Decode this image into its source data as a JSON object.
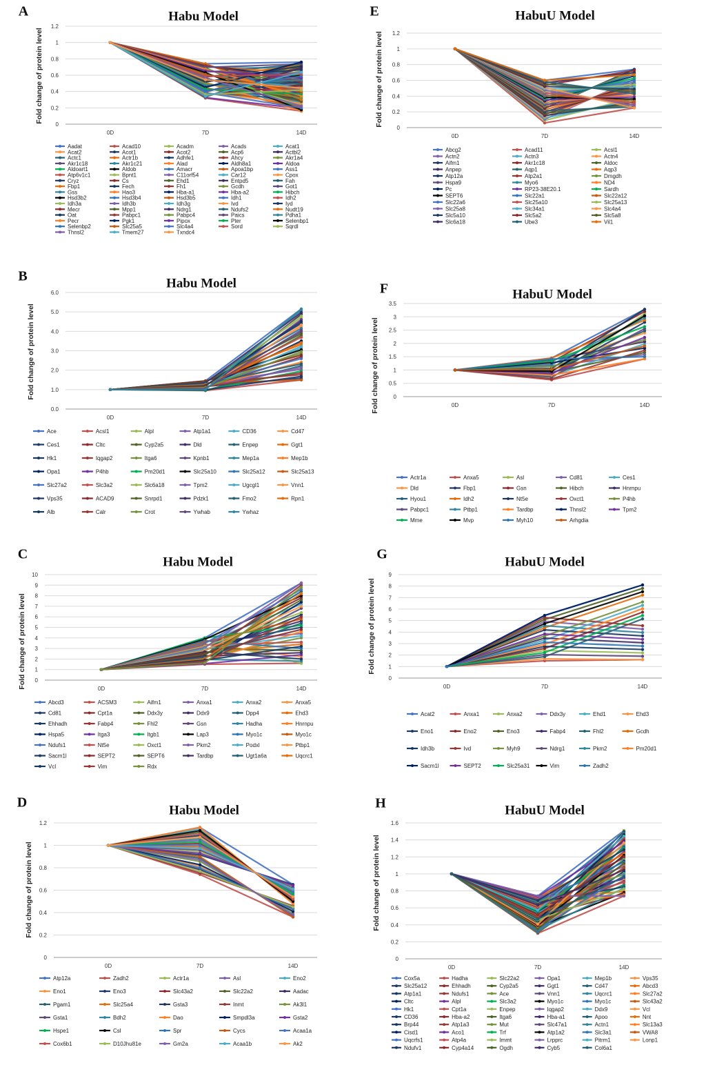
{
  "figure": {
    "description_panels": 8
  },
  "chart_data": [
    {
      "panel": "A",
      "title": "Habu Model",
      "type": "line",
      "ylabel": "Fold change of protein level",
      "categories": [
        "0D",
        "7D",
        "14D"
      ],
      "ylim": [
        0,
        1.2
      ],
      "yticks": [
        "0",
        "0.2",
        "0.4",
        "0.6",
        "0.8",
        "1",
        "1.2"
      ],
      "legend_cols": 5,
      "legend": [
        "Aadat",
        "Acad10",
        "Acadm",
        "Acads",
        "Acat1",
        "Acat2",
        "Acot1",
        "Acot2",
        "Acp6",
        "Actbl2",
        "Actc1",
        "Actr1b",
        "Adhfe1",
        "Ahcy",
        "Akr1a4",
        "Akr1c18",
        "Akr1c21",
        "Alad",
        "Aldh8a1",
        "Aldoa",
        "Aldoart1",
        "Aldob",
        "Amacr",
        "Apoa1bp",
        "Ass1",
        "Atp6v1c1",
        "Bpnt1",
        "C11orf54",
        "Car12",
        "Cpox",
        "Cryz",
        "Cs",
        "Ehd1",
        "Entpd5",
        "Fah",
        "Fbp1",
        "Fech",
        "Fh1",
        "Gcdh",
        "Got1",
        "Gss",
        "Hao3",
        "Hba-a1",
        "Hba-a2",
        "Hibch",
        "Hsd3b2",
        "Hsd3b4",
        "Hsd3b5",
        "Idh1",
        "Idh2",
        "Idh3a",
        "Idh3b",
        "Idh3g",
        "Ivd",
        "Iyd",
        "Mecr",
        "Mpp1",
        "Ndrg1",
        "Ndufs2",
        "Nudt19",
        "Oat",
        "Pabpc1",
        "Pabpc4",
        "Paics",
        "Pdha1",
        "Pecr",
        "Pgk1",
        "Pipox",
        "Pter",
        "Selenbp1",
        "Selenbp2",
        "Slc25a5",
        "Slc4a4",
        "Sord",
        "Sqrdl",
        "Thnsl2",
        "Tmem27",
        "Txndc4"
      ],
      "series_range": {
        "d7": [
          0.32,
          0.74
        ],
        "d14": [
          0.16,
          0.76
        ]
      }
    },
    {
      "panel": "B",
      "title": "Habu Model",
      "type": "line",
      "ylabel": "Fold change of protein level",
      "categories": [
        "0D",
        "7D",
        "14D"
      ],
      "ylim": [
        0,
        6
      ],
      "yticks": [
        "0.0",
        "1.0",
        "2.0",
        "3.0",
        "4.0",
        "5.0",
        "6.0"
      ],
      "legend_cols": 6,
      "legend": [
        "Ace",
        "Acsl1",
        "Alpl",
        "Atp1a1",
        "CD36",
        "Cd47",
        "Ces1",
        "Cltc",
        "Cyp2a5",
        "Dld",
        "Enpep",
        "Ggt1",
        "Hk1",
        "Iqgap2",
        "Itga6",
        "Kpnb1",
        "Mep1a",
        "Mep1b",
        "Opa1",
        "P4hb",
        "Pm20d1",
        "Slc25a10",
        "Slc25a12",
        "Slc25a13",
        "Slc27a2",
        "Slc3a2",
        "Slc6a18",
        "Tpm2",
        "Ugcgl1",
        "Vnn1",
        "Vps35",
        "ACAD9",
        "Snrpd1",
        "Pdzk1",
        "Fmo2",
        "Rpn1",
        "Alb",
        "Calr",
        "Crot",
        "Ywhab",
        "Ywhaz"
      ],
      "series_range": {
        "d7": [
          0.95,
          1.45
        ],
        "d14": [
          1.5,
          5.15
        ]
      }
    },
    {
      "panel": "C",
      "title": "Habu Model",
      "type": "line",
      "ylabel": "Fold change of protein level",
      "categories": [
        "0D",
        "7D",
        "14D"
      ],
      "ylim": [
        0,
        10
      ],
      "yticks": [
        "0",
        "1",
        "2",
        "3",
        "4",
        "5",
        "6",
        "7",
        "8",
        "9",
        "10"
      ],
      "legend_cols": 6,
      "legend": [
        "Abcd3",
        "ACSM3",
        "Aifm1",
        "Anxa1",
        "Anxa2",
        "Anxa5",
        "Cd81",
        "Cpt1a",
        "Ddx3y",
        "Ddx9",
        "Dpp4",
        "Ehd3",
        "Ehhadh",
        "Fabp4",
        "Fhl2",
        "Gsn",
        "Hadha",
        "Hnrnpu",
        "Hspa5",
        "Itga3",
        "Itgb1",
        "Lap3",
        "Myo1c",
        "Myo1c",
        "Ndufs1",
        "Nt5e",
        "Oxct1",
        "Pkm2",
        "Podxl",
        "Ptbp1",
        "Sacm1l",
        "SEPT2",
        "SEPT6",
        "Tardbp",
        "Ugt1a6a",
        "Uqcrc1",
        "Vcl",
        "Vim",
        "Rdx"
      ],
      "series_range": {
        "d7": [
          1.5,
          4.0
        ],
        "d14": [
          1.6,
          9.2
        ]
      }
    },
    {
      "panel": "D",
      "title": "Habu Model",
      "type": "line",
      "ylabel": "Fold change of protein level",
      "categories": [
        "0D",
        "7D",
        "14D"
      ],
      "ylim": [
        0,
        1.2
      ],
      "yticks": [
        "0",
        "0.2",
        "0.4",
        "0.6",
        "0.8",
        "1",
        "1.2"
      ],
      "legend_cols": 5,
      "legend": [
        "Atp12a",
        "Zadh2",
        "Actr1a",
        "Asl",
        "Eno2",
        "Eno1",
        "Eno3",
        "Slc43a2",
        "Slc22a2",
        "Aadac",
        "Pgam1",
        "Slc25a4",
        "Gsta3",
        "Inmt",
        "Ak3l1",
        "Gsta1",
        "Bdh2",
        "Dao",
        "Smpdl3a",
        "Gsta2",
        "Hspe1",
        "Csl",
        "Spr",
        "Cycs",
        "Acaa1a",
        "Cox6b1",
        "D10Jhu81e",
        "Gm2a",
        "Acaa1b",
        "Ak2"
      ],
      "series_range": {
        "d7": [
          0.74,
          1.16
        ],
        "d14": [
          0.36,
          0.65
        ]
      }
    },
    {
      "panel": "E",
      "title": "HabuU Model",
      "type": "line",
      "ylabel": "Fold change of protein level",
      "categories": [
        "0D",
        "7D",
        "14D"
      ],
      "ylim": [
        0,
        1.2
      ],
      "yticks": [
        "0",
        "0.2",
        "0.4",
        "0.6",
        "0.8",
        "1",
        "1.2"
      ],
      "legend_cols": 3,
      "legend": [
        "Abcg2",
        "Acad11",
        "Acsl1",
        "Actn2",
        "Actn3",
        "Actn4",
        "Aifm1",
        "Akr1c18",
        "Aldoc",
        "Anpep",
        "Aqp1",
        "Aqp3",
        "Atp12a",
        "Atp2a1",
        "Dmgdh",
        "Hspa9",
        "Myo6",
        "ND4",
        "Pc",
        "RP23-38E20.1",
        "Sardh",
        "SEPT6",
        "Slc22a1",
        "Slc22a12",
        "Slc22a6",
        "Slc25a10",
        "Slc25a13",
        "Slc25a8",
        "Slc34a1",
        "Slc4a4",
        "Slc5a10",
        "Slc5a2",
        "Slc5a8",
        "Slc6a18",
        "Ube3",
        "Vil1"
      ],
      "series_range": {
        "d7": [
          0.06,
          0.6
        ],
        "d14": [
          0.25,
          0.74
        ]
      }
    },
    {
      "panel": "F",
      "title": "HabuU Model",
      "type": "line",
      "ylabel": "Fold change of protein level",
      "categories": [
        "0D",
        "7D",
        "14D"
      ],
      "ylim": [
        0,
        3.5
      ],
      "yticks": [
        "0",
        "0.5",
        "1",
        "1.5",
        "2",
        "2.5",
        "3",
        "3.5"
      ],
      "legend_cols": 5,
      "legend": [
        "Actr1a",
        "Anxa5",
        "Asl",
        "Cd81",
        "Ces1",
        "Dld",
        "Fbp1",
        "Gsn",
        "Hibch",
        "Hnrnpu",
        "Hyou1",
        "Idh2",
        "Nt5e",
        "Oxct1",
        "P4hb",
        "Pabpc1",
        "Ptbp1",
        "Tardbp",
        "Thnsl2",
        "Tpm2",
        "Mme",
        "Mvp",
        "Myh10",
        "Arhgdia"
      ],
      "series_range": {
        "d7": [
          0.63,
          1.45
        ],
        "d14": [
          1.42,
          3.28
        ]
      }
    },
    {
      "panel": "G",
      "title": "HabuU Model",
      "type": "line",
      "ylabel": "Fold change of protein level",
      "categories": [
        "0D",
        "7D",
        "14D"
      ],
      "ylim": [
        0,
        9
      ],
      "yticks": [
        "0",
        "1",
        "2",
        "3",
        "4",
        "5",
        "6",
        "7",
        "8",
        "9"
      ],
      "legend_cols": 6,
      "legend": [
        "Acat2",
        "Anxa1",
        "Anxa2",
        "Ddx3y",
        "Ehd1",
        "Ehd3",
        "Eno1",
        "Eno2",
        "Eno3",
        "Fabp4",
        "Fhl2",
        "Gcdh",
        "Idh3b",
        "Ivd",
        "Myh9",
        "Ndrg1",
        "Pkm2",
        "Pm20d1",
        "Sacm1l",
        "SEPT2",
        "Slc25a31",
        "Vim",
        "Zadh2"
      ],
      "series_range": {
        "d7": [
          1.5,
          5.45
        ],
        "d14": [
          1.6,
          8.1
        ]
      }
    },
    {
      "panel": "H",
      "title": "HabuU Model",
      "type": "line",
      "ylabel": "Fold change of protein level",
      "categories": [
        "0D",
        "7D",
        "14D"
      ],
      "ylim": [
        0,
        1.6
      ],
      "yticks": [
        "0",
        "0.2",
        "0.4",
        "0.6",
        "0.8",
        "1",
        "1.2",
        "1.4",
        "1.6"
      ],
      "legend_cols": 6,
      "legend": [
        "Cox5a",
        "Hadha",
        "Slc22a2",
        "Opa1",
        "Mep1b",
        "Vps35",
        "Slc25a12",
        "Ehhadh",
        "Cyp2a5",
        "Ggt1",
        "Cd47",
        "Abcd3",
        "Atp1a1",
        "Ndufs1",
        "Ace",
        "Vnn1",
        "Uqcrc1",
        "Slc27a2",
        "Cltc",
        "Alpl",
        "Slc3a2",
        "Myo1c",
        "Myo1c",
        "Slc43a2",
        "Hk1",
        "Cpt1a",
        "Enpep",
        "Iqgap2",
        "Ddx9",
        "Vcl",
        "CD36",
        "Hba-a2",
        "Itga6",
        "Hba-a1",
        "Apoo",
        "Nnt",
        "Brp44",
        "Atp1a3",
        "Mut",
        "Slc47a1",
        "Actn1",
        "Slc13a3",
        "Cisd1",
        "Aco1",
        "Trf",
        "Atp1a2",
        "Slc3a1",
        "VWA8",
        "Uqcrfs1",
        "Atp4a",
        "Immt",
        "Lrpprc",
        "Pitrm1",
        "Lonp1",
        "Ndufv1",
        "Cyp4a14",
        "Ogdh",
        "Cyb5",
        "Col6a1"
      ],
      "series_range": {
        "d7": [
          0.3,
          0.74
        ],
        "d14": [
          0.74,
          1.51
        ]
      }
    }
  ]
}
